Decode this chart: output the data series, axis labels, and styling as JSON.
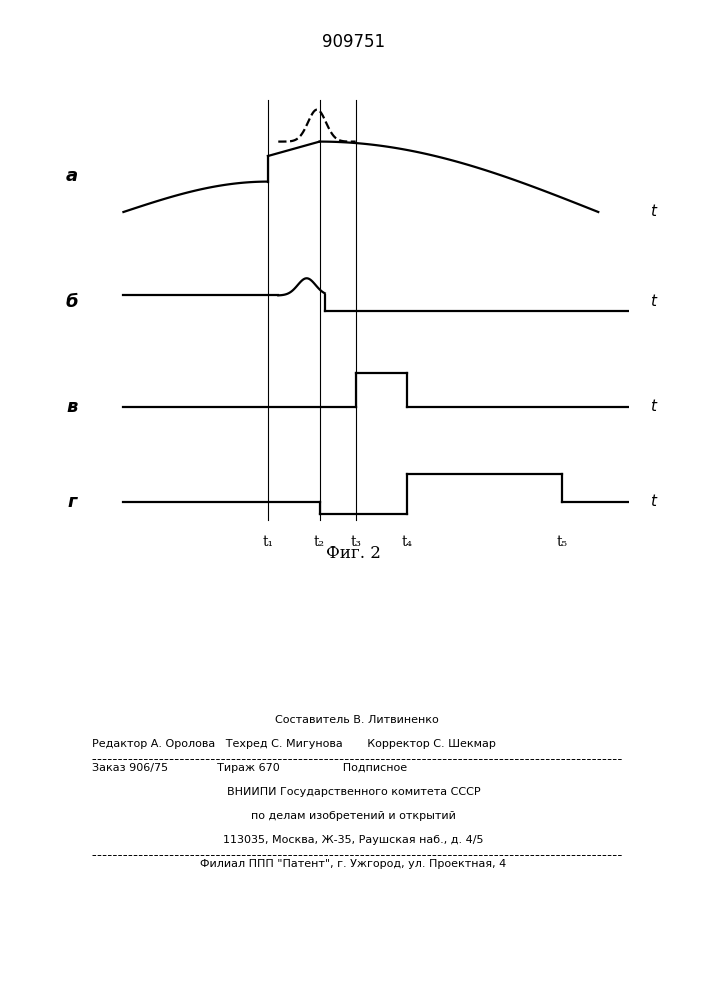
{
  "title": "909751",
  "fig_label": "Фиг. 2",
  "labels": [
    "a",
    "б",
    "в",
    "г"
  ],
  "t_labels": [
    "t₁",
    "t₂",
    "t₃",
    "t₄",
    "t₅"
  ],
  "t1": 0.3,
  "t2": 0.4,
  "t3": 0.47,
  "t4": 0.57,
  "t5": 0.87,
  "background_color": "#ffffff",
  "line_color": "#000000",
  "footer": [
    "  Составитель В. Литвиненко",
    "Редактор А. Оролова   Техред С. Мигунова       Корректор С. Шекмар",
    "Заказ 906/75              Тираж 670                  Подписное",
    "ВНИИПИ Государственного комитета СССР",
    "по делам изобретений и открытий",
    "113035, Москва, Ж-35, Раушская наб., д. 4/5",
    "Филиал ППП \"Патент\", г. Ужгород, ул. Проектная, 4"
  ]
}
